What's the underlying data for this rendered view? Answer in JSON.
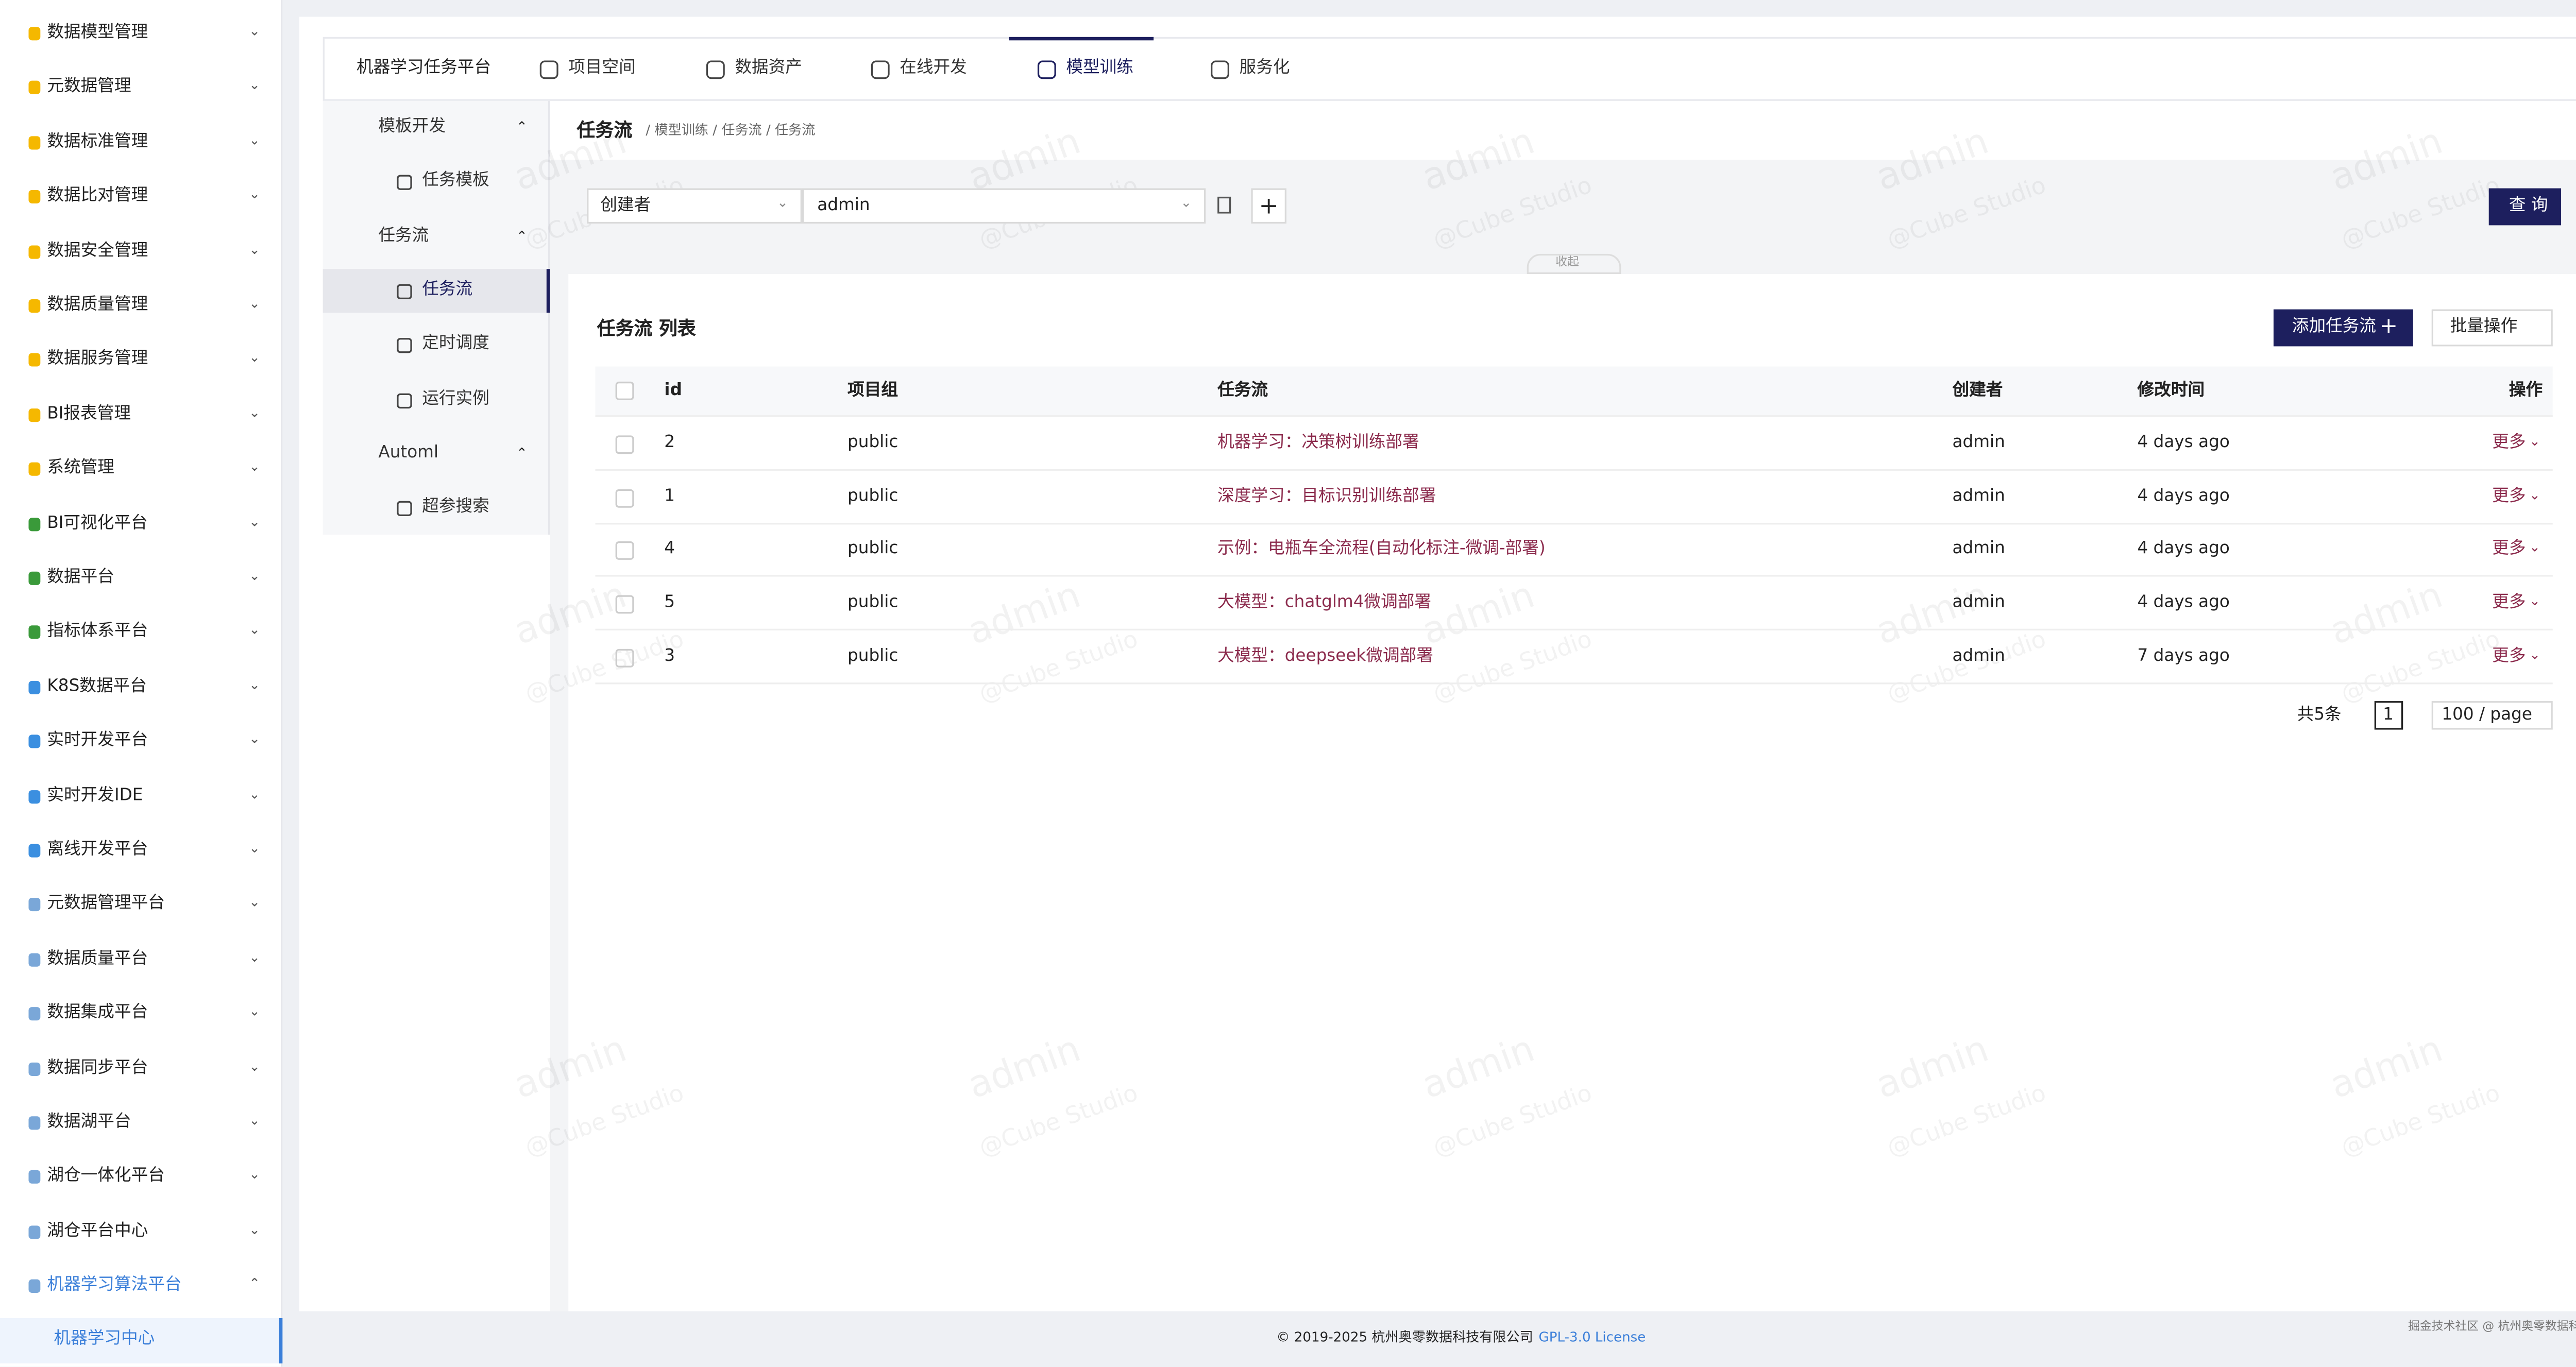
{
  "sidebar": {
    "items": [
      "数据模型管理",
      "元数据管理",
      "数据标准管理",
      "数据比对管理",
      "数据安全管理",
      "数据质量管理",
      "数据服务管理",
      "BI报表管理",
      "系统管理",
      "BI可视化平台",
      "数据平台",
      "指标体系平台",
      "K8S数据平台",
      "实时开发平台",
      "实时开发IDE",
      "离线开发平台",
      "元数据管理平台",
      "数据质量平台",
      "数据集成平台",
      "数据同步平台",
      "数据湖平台",
      "湖仓一体化平台",
      "湖仓平台中心",
      "机器学习算法平台"
    ],
    "active_sub": "机器学习中心"
  },
  "top_nav": {
    "brand": "机器学习任务平台",
    "tabs": [
      "项目空间",
      "数据资产",
      "在线开发",
      "模型训练",
      "服务化"
    ]
  },
  "left_menu": [
    {
      "group": "模板开发",
      "items": [
        "任务模板"
      ]
    },
    {
      "group": "任务流",
      "items": [
        "任务流",
        "定时调度",
        "运行实例"
      ]
    },
    {
      "group": "Automl",
      "items": [
        "超参搜索"
      ]
    }
  ],
  "page": {
    "title": "任务流",
    "breadcrumb": "/ 模型训练 / 任务流 / 任务流"
  },
  "filter": {
    "field": "创建者",
    "value": "admin",
    "search": "查 询",
    "collapse": "收起"
  },
  "table": {
    "title": "任务流 列表",
    "add": "添加任务流",
    "batch": "批量操作",
    "columns": [
      "id",
      "项目组",
      "任务流",
      "创建者",
      "修改时间",
      "操作"
    ],
    "rows": [
      [
        2,
        "public",
        "机器学习：决策树训练部署",
        "admin",
        "4 days ago",
        "更多"
      ],
      [
        1,
        "public",
        "深度学习：目标识别训练部署",
        "admin",
        "4 days ago",
        "更多"
      ],
      [
        4,
        "public",
        "示例：电瓶车全流程(自动化标注-微调-部署)",
        "admin",
        "4 days ago",
        "更多"
      ],
      [
        5,
        "public",
        "大模型：chatglm4微调部署",
        "admin",
        "4 days ago",
        "更多"
      ],
      [
        3,
        "public",
        "大模型：deepseek微调部署",
        "admin",
        "7 days ago",
        "更多"
      ]
    ]
  },
  "pagination": {
    "total": "共5条",
    "page": "1",
    "size": "100 / page"
  },
  "footer": {
    "copyright": "© 2019-2025 杭州奥零数据科技有限公司",
    "license": "GPL-3.0 License",
    "credit": "掘金技术社区 @ 杭州奥零数据科技"
  },
  "watermark": {
    "user": "admin",
    "brand": "@Cube Studio"
  }
}
